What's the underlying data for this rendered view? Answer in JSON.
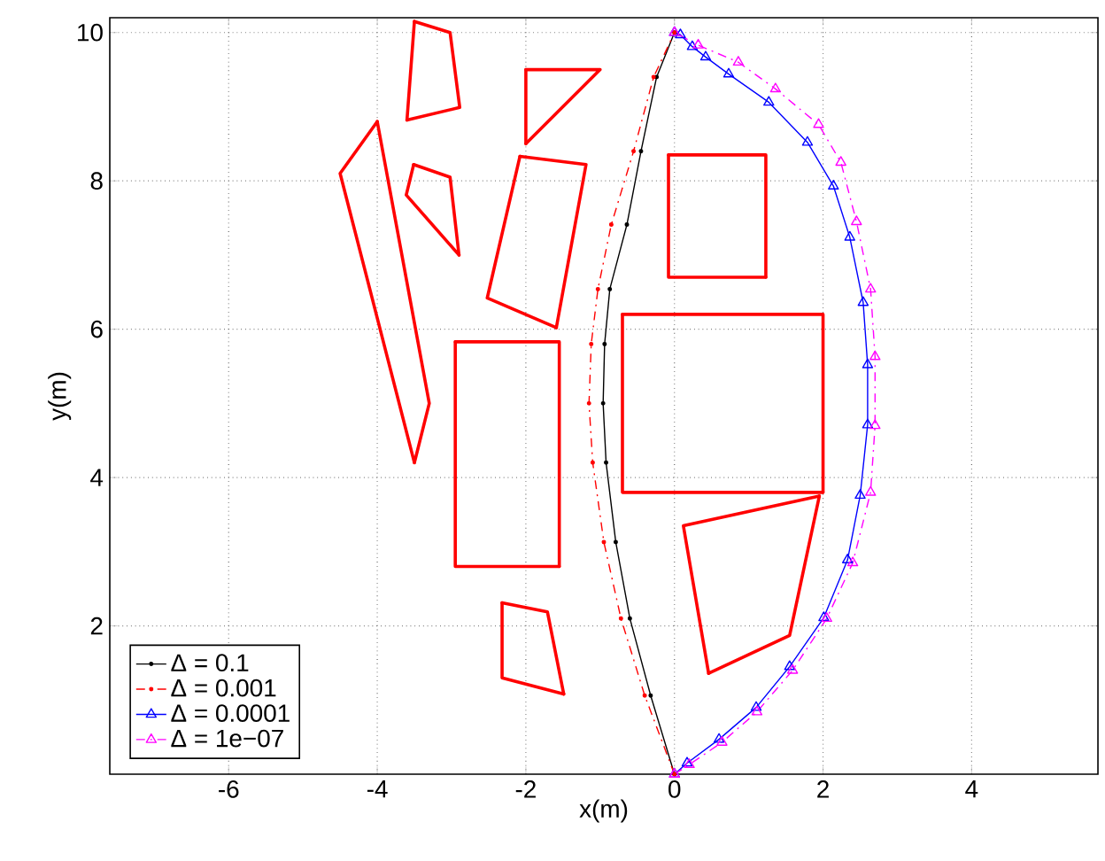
{
  "chart_data": {
    "type": "line",
    "xlabel": "x(m)",
    "ylabel": "y(m)",
    "xlim": [
      -7.6,
      5.7
    ],
    "ylim": [
      0,
      10.2
    ],
    "xticks": [
      -6,
      -4,
      -2,
      0,
      2,
      4
    ],
    "yticks": [
      2,
      4,
      6,
      8,
      10
    ],
    "grid": true,
    "legend": "bottom left",
    "series": [
      {
        "name": "Δ = 0.1",
        "color": "#000000",
        "line_style": "solid",
        "marker": "circle",
        "x": [
          0,
          -0.32,
          -0.6,
          -0.79,
          -0.92,
          -0.96,
          -0.94,
          -0.87,
          -0.64,
          -0.45,
          -0.24,
          0
        ],
        "values": [
          0,
          1.06,
          2.1,
          3.13,
          4.2,
          5.0,
          5.8,
          6.54,
          7.41,
          8.4,
          9.4,
          10
        ]
      },
      {
        "name": "Δ = 0.001",
        "color": "#ff0000",
        "line_style": "dashed",
        "marker": "circle",
        "x": [
          0,
          -0.4,
          -0.72,
          -0.95,
          -1.1,
          -1.15,
          -1.12,
          -1.03,
          -0.85,
          -0.55,
          -0.28,
          0
        ],
        "values": [
          0,
          1.06,
          2.1,
          3.13,
          4.2,
          5.0,
          5.8,
          6.54,
          7.41,
          8.4,
          9.4,
          10
        ]
      },
      {
        "name": "Δ = 0.0001",
        "color": "#0000ff",
        "line_style": "solid",
        "marker": "triangle",
        "x": [
          0,
          0.17,
          0.6,
          1.1,
          1.55,
          2.01,
          2.33,
          2.5,
          2.6,
          2.6,
          2.54,
          2.36,
          2.14,
          1.79,
          1.27,
          0.73,
          0.42,
          0.24,
          0.08,
          0
        ],
        "values": [
          0,
          0.15,
          0.47,
          0.9,
          1.45,
          2.11,
          2.89,
          3.76,
          4.71,
          5.52,
          6.36,
          7.24,
          7.93,
          8.52,
          9.06,
          9.44,
          9.67,
          9.81,
          9.97,
          10
        ]
      },
      {
        "name": "Δ = 1e−07",
        "color": "#ff00ff",
        "line_style": "dashed",
        "marker": "triangle",
        "x": [
          0,
          0.2,
          0.64,
          1.11,
          1.59,
          2.05,
          2.4,
          2.64,
          2.7,
          2.7,
          2.64,
          2.45,
          2.24,
          1.94,
          1.36,
          0.86,
          0.32,
          0
        ],
        "values": [
          0,
          0.13,
          0.43,
          0.84,
          1.4,
          2.1,
          2.85,
          3.8,
          4.7,
          5.63,
          6.54,
          7.45,
          8.25,
          8.76,
          9.24,
          9.6,
          9.83,
          10
        ]
      },
      {
        "color": "#ff0000",
        "x": [
          -3.5,
          -3.02,
          -2.89,
          -3.6
        ],
        "values": [
          10.15,
          10.0,
          8.99,
          8.82
        ]
      },
      {
        "color": "#ff0000",
        "x": [
          -3.5,
          -3.6
        ],
        "values": [
          10.15,
          8.82
        ]
      },
      {
        "color": "#ff0000",
        "x": [
          -2,
          -1,
          -2
        ],
        "values": [
          9.5,
          9.5,
          8.5
        ]
      },
      {
        "color": "#ff0000",
        "x": [
          -2,
          -2
        ],
        "values": [
          9.5,
          8.5
        ]
      },
      {
        "color": "#ff0000",
        "x": [
          -3.51,
          -3.02,
          -2.9
        ],
        "values": [
          8.22,
          8.05,
          7.0
        ]
      },
      {
        "color": "#ff0000",
        "x": [
          -3.51,
          -3.61,
          -2.9
        ],
        "values": [
          8.22,
          7.81,
          7.0
        ]
      },
      {
        "color": "#ff0000",
        "x": [
          -4.0,
          -4.5,
          -3.5
        ],
        "values": [
          8.8,
          8.1,
          4.2
        ]
      },
      {
        "color": "#ff0000",
        "x": [
          -4.0,
          -3.3,
          -3.5
        ],
        "values": [
          8.8,
          5.0,
          4.2
        ]
      },
      {
        "color": "#ff0000",
        "x": [
          -2.08,
          -1.19,
          -1.59
        ],
        "values": [
          8.33,
          8.22,
          6.02
        ]
      },
      {
        "color": "#ff0000",
        "x": [
          -2.08,
          -2.52,
          -1.59
        ],
        "values": [
          8.33,
          6.42,
          6.02
        ]
      },
      {
        "color": "#ff0000",
        "x": [
          -2.95,
          -1.55,
          -1.55
        ],
        "values": [
          5.83,
          5.83,
          2.8
        ]
      },
      {
        "color": "#ff0000",
        "x": [
          -2.95,
          -2.95,
          -1.55
        ],
        "values": [
          5.83,
          2.8,
          2.8
        ]
      },
      {
        "color": "#ff0000",
        "x": [
          -2.32,
          -1.71,
          -1.49
        ],
        "values": [
          2.31,
          2.19,
          1.08
        ]
      },
      {
        "color": "#ff0000",
        "x": [
          -2.32,
          -2.32,
          -1.49
        ],
        "values": [
          2.31,
          1.3,
          1.08
        ]
      },
      {
        "color": "#ff0000",
        "x": [
          -0.08,
          1.23,
          1.23
        ],
        "values": [
          8.35,
          8.35,
          6.7
        ]
      },
      {
        "color": "#ff0000",
        "x": [
          -0.08,
          -0.08,
          1.23
        ],
        "values": [
          8.35,
          6.7,
          6.7
        ]
      },
      {
        "color": "#ff0000",
        "x": [
          -0.7,
          2.0,
          2.0
        ],
        "values": [
          6.2,
          6.2,
          3.8
        ]
      },
      {
        "color": "#ff0000",
        "x": [
          -0.7,
          -0.7,
          2.0
        ],
        "values": [
          6.2,
          3.8,
          3.8
        ]
      },
      {
        "color": "#ff0000",
        "x": [
          1.95,
          0.12,
          0.46
        ],
        "values": [
          3.75,
          3.35,
          1.36
        ]
      },
      {
        "color": "#ff0000",
        "x": [
          1.95,
          1.55,
          0.46
        ],
        "values": [
          3.75,
          1.87,
          1.36
        ]
      }
    ]
  }
}
